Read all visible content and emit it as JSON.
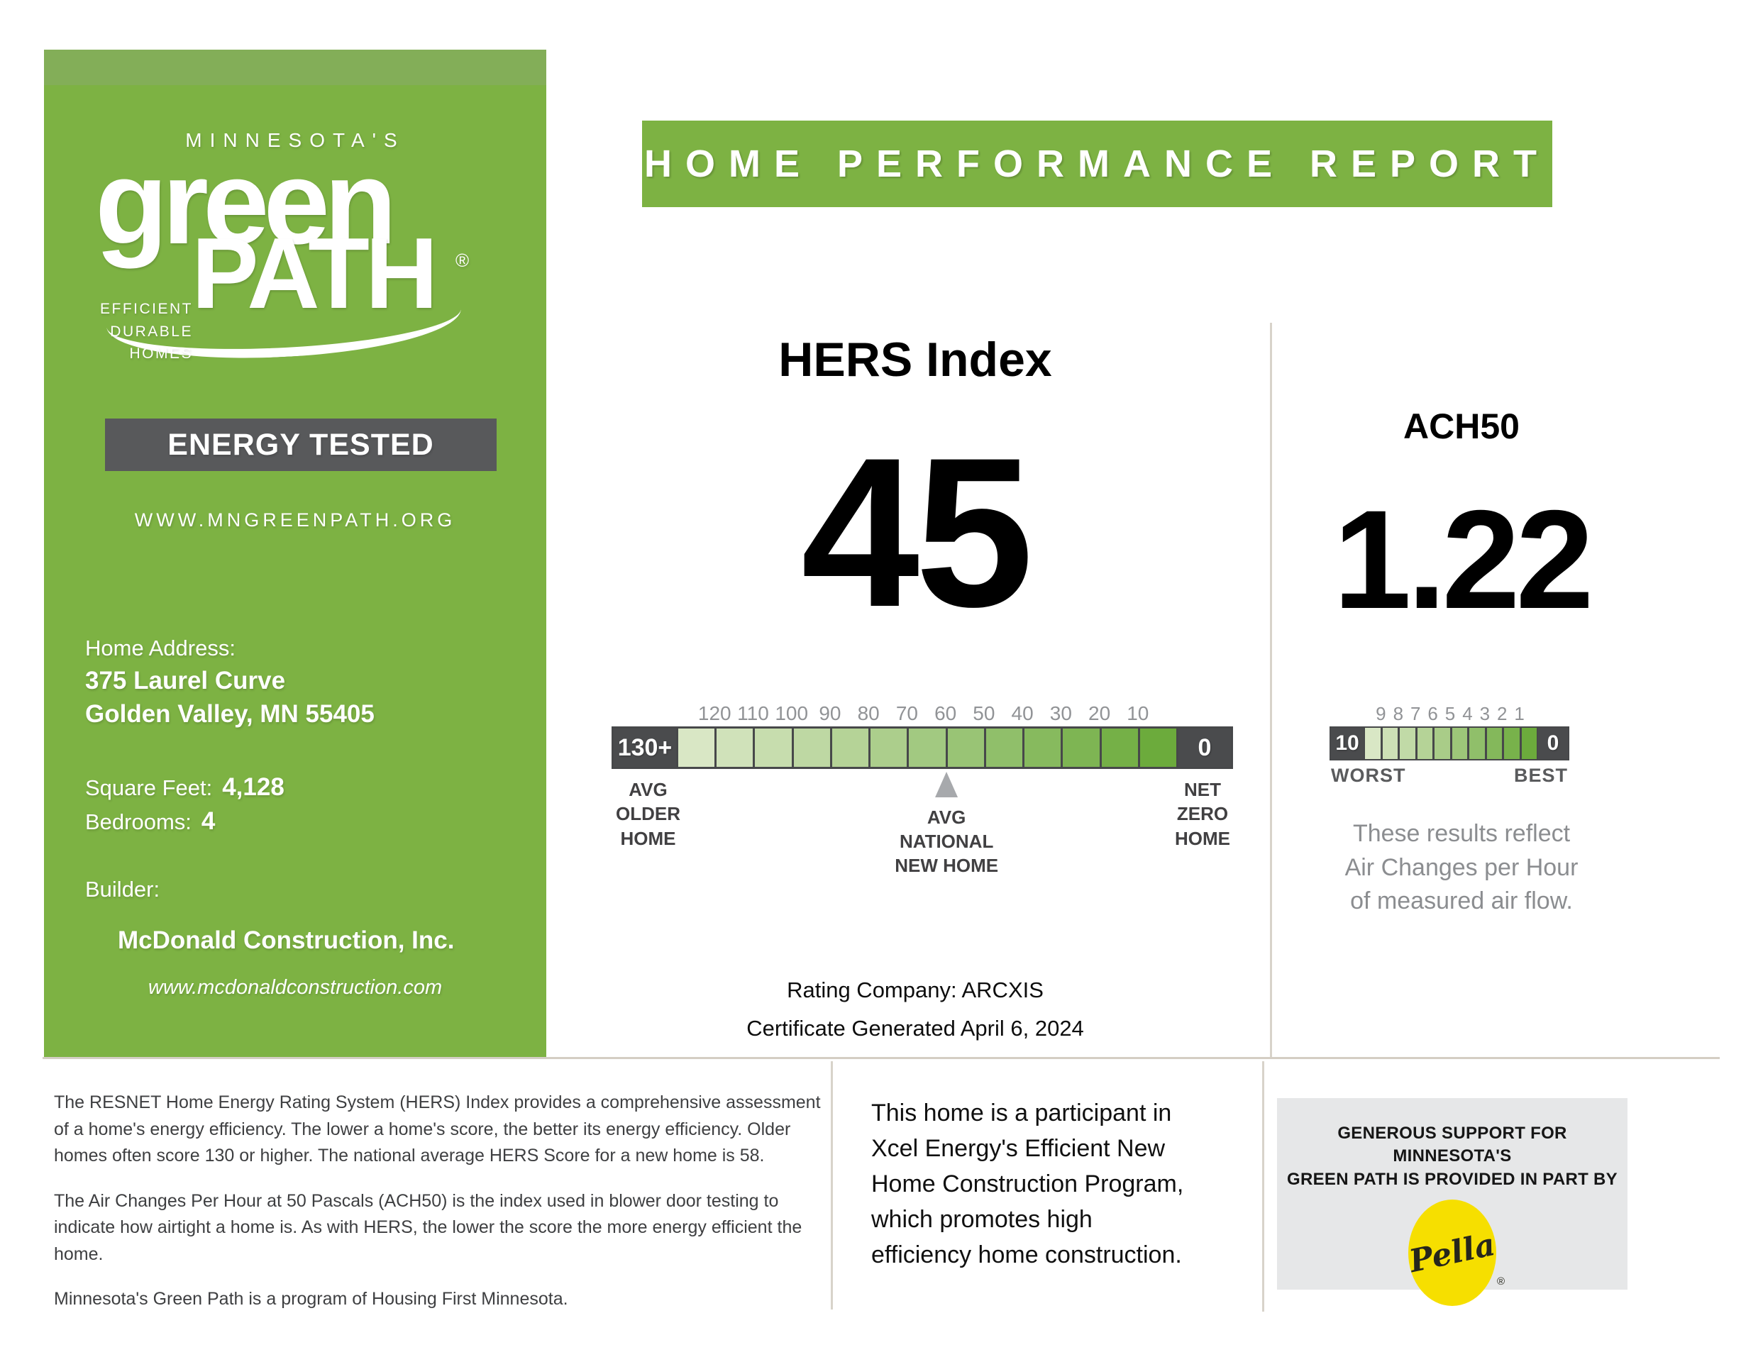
{
  "colors": {
    "brand_green": "#7db243",
    "badge_gray": "#58595b",
    "scale_end_gray": "#4a4b4d",
    "tick_gray": "#919396",
    "label_dark": "#414042",
    "note_gray": "#8b8d90",
    "divider_tan": "#d4cec4",
    "sponsor_panel_gray": "#e6e7e8",
    "pella_yellow": "#f6df00"
  },
  "sidebar": {
    "brand_top": "MINNESOTA'S",
    "logo_word1": "green",
    "logo_word2": "PATH",
    "logo_reg": "®",
    "logo_tagline": [
      "EFFICIENT",
      "DURABLE",
      "HOMES"
    ],
    "badge": "ENERGY TESTED",
    "website": "WWW.MNGREENPATH.ORG",
    "address_label": "Home Address:",
    "address_line1": "375 Laurel Curve",
    "address_line2": "Golden Valley, MN 55405",
    "sqft_label": "Square Feet:",
    "sqft_value": "4,128",
    "bedrooms_label": "Bedrooms:",
    "bedrooms_value": "4",
    "builder_label": "Builder:",
    "builder_name": "McDonald Construction, Inc.",
    "builder_website": "www.mcdonaldconstruction.com"
  },
  "header": {
    "title": "HOME PERFORMANCE REPORT"
  },
  "hers": {
    "title": "HERS Index",
    "value": "45",
    "scale_left_label": "130+",
    "scale_right_label": "0",
    "ticks": [
      "120",
      "110",
      "100",
      "90",
      "80",
      "70",
      "60",
      "50",
      "40",
      "30",
      "20",
      "10"
    ],
    "marker_tick": "60",
    "cell_colors": [
      "#d9e7c5",
      "#d0e2ba",
      "#c7ddae",
      "#bed8a3",
      "#b5d397",
      "#acce8c",
      "#a2c981",
      "#99c475",
      "#90bf6a",
      "#87ba5e",
      "#7eb553",
      "#75b047",
      "#6cab3c"
    ],
    "label_left_lines": [
      "AVG",
      "OLDER",
      "HOME"
    ],
    "marker_label_lines": [
      "AVG",
      "NATIONAL",
      "NEW HOME"
    ],
    "label_right_lines": [
      "NET",
      "ZERO",
      "HOME"
    ]
  },
  "ach": {
    "title": "ACH50",
    "value": "1.22",
    "scale_left_label": "10",
    "scale_right_label": "0",
    "ticks": [
      "9",
      "8",
      "7",
      "6",
      "5",
      "4",
      "3",
      "2",
      "1"
    ],
    "cell_colors": [
      "#d9e7c5",
      "#cde0b6",
      "#c1daa7",
      "#b5d397",
      "#a9cc88",
      "#9dc679",
      "#90bf6a",
      "#84b85b",
      "#78b24b",
      "#6cab3c"
    ],
    "label_left": "WORST",
    "label_right": "BEST",
    "note_lines": [
      "These results reflect",
      "Air Changes per Hour",
      "of measured air flow."
    ]
  },
  "rating": {
    "company": "Rating Company: ARCXIS",
    "generated": "Certificate Generated April 6, 2024"
  },
  "footer": {
    "p1_lines": [
      "The RESNET Home Energy Rating System (HERS) Index provides a comprehensive assessment",
      "of a home's energy efficiency. The lower a home's score, the better its energy efficiency. Older",
      "homes often score 130 or higher. The national average HERS Score for a new home is 58."
    ],
    "p2_lines": [
      "The Air Changes Per Hour at 50 Pascals (ACH50) is the index used in blower door testing to",
      "indicate how airtight a home is. As with HERS, the lower the score the more energy efficient",
      "the home."
    ],
    "p3": "Minnesota's Green Path is a program of Housing First Minnesota.",
    "participation_lines": [
      "This home is a participant in",
      "Xcel Energy's Efficient New",
      "Home Construction Program,",
      "which promotes high",
      "efficiency home construction."
    ],
    "sponsor_heading_lines": [
      "GENEROUS SUPPORT FOR MINNESOTA'S",
      "GREEN PATH IS PROVIDED IN PART BY"
    ],
    "sponsor_logo": "Pella",
    "sponsor_reg": "®"
  }
}
